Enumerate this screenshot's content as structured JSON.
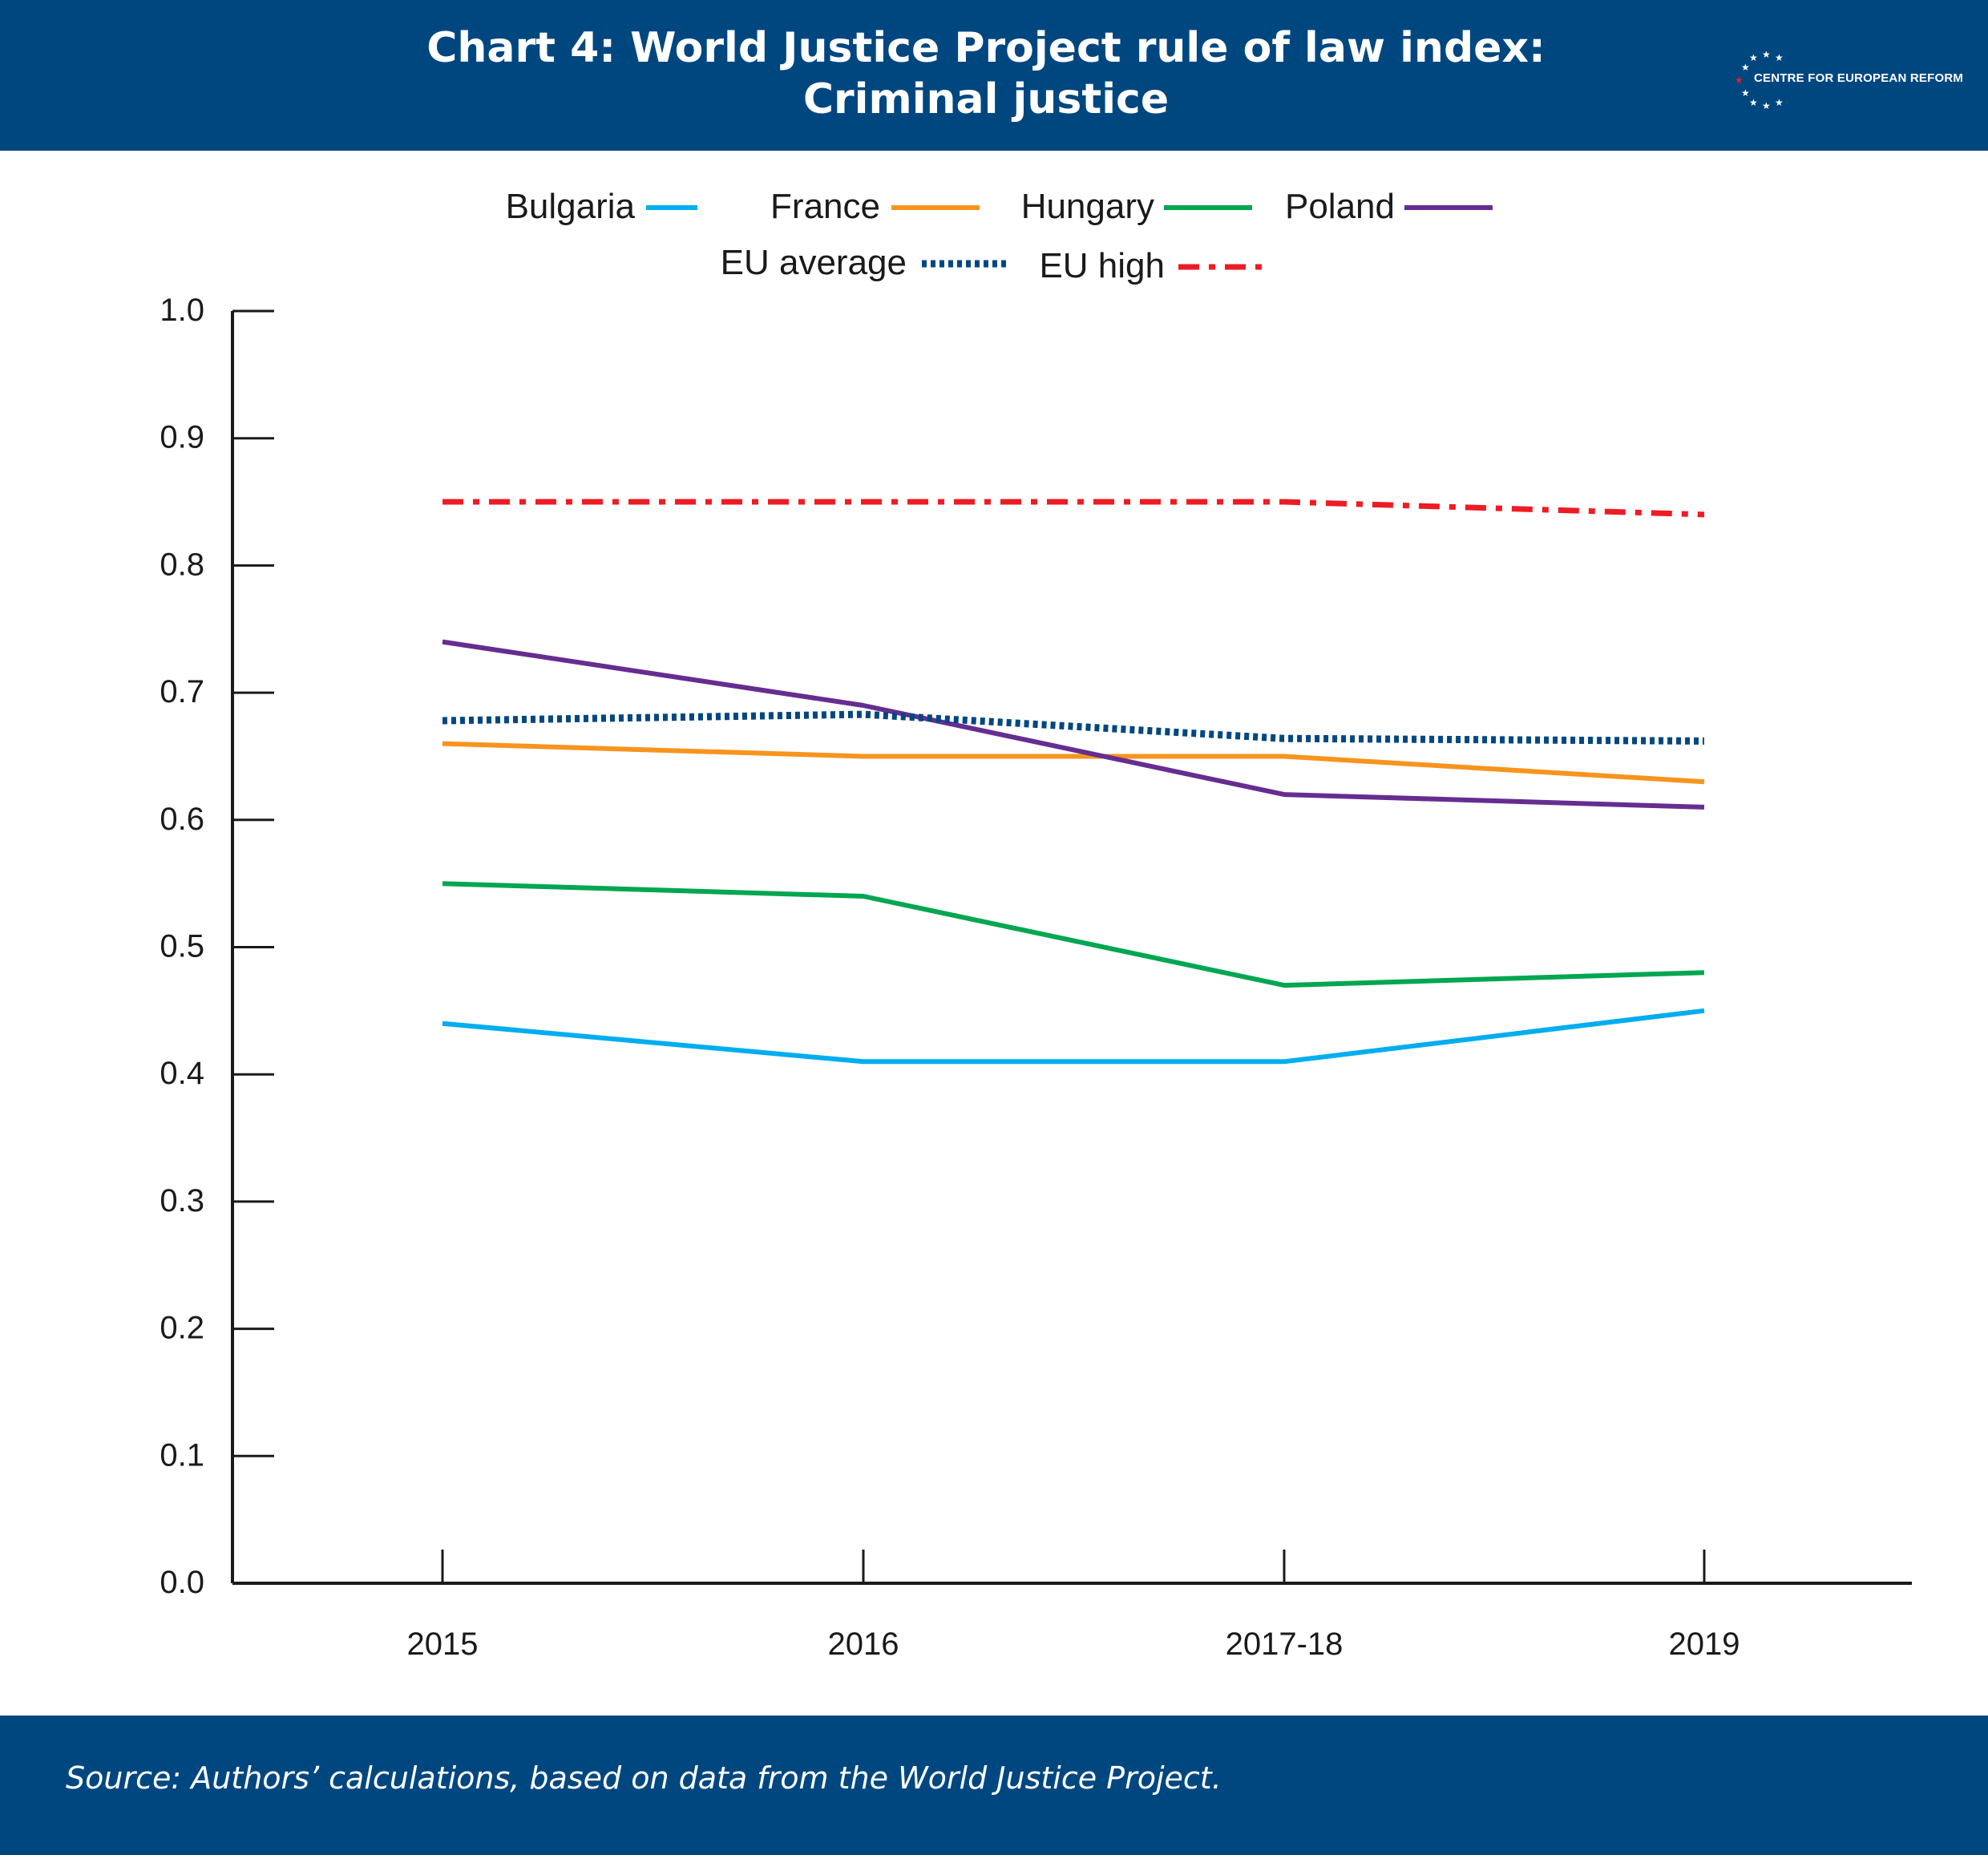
{
  "header": {
    "title_line1": "Chart 4: World Justice Project rule of law index:",
    "title_line2": "Criminal justice",
    "logo_text": "CENTRE FOR EUROPEAN REFORM",
    "background_color": "#004780"
  },
  "footer": {
    "source": "Source: Authors’ calculations, based on data from the World Justice Project."
  },
  "chart_data": {
    "type": "line",
    "x": [
      "2015",
      "2016",
      "2017-18",
      "2019"
    ],
    "ylim": [
      0,
      1.0
    ],
    "yticks": [
      "0.0",
      "0.1",
      "0.2",
      "0.3",
      "0.4",
      "0.5",
      "0.6",
      "0.7",
      "0.8",
      "0.9",
      "1.0"
    ],
    "grid": false,
    "legend_placement": "top-center",
    "series": [
      {
        "name": "Bulgaria",
        "values": [
          0.44,
          0.41,
          0.41,
          0.45
        ],
        "color": "#00adef",
        "style": "solid"
      },
      {
        "name": "France",
        "values": [
          0.66,
          0.65,
          0.65,
          0.63
        ],
        "color": "#f7941d",
        "style": "solid"
      },
      {
        "name": "Hungary",
        "values": [
          0.55,
          0.54,
          0.47,
          0.48
        ],
        "color": "#00a651",
        "style": "solid"
      },
      {
        "name": "Poland",
        "values": [
          0.74,
          0.69,
          0.62,
          0.61
        ],
        "color": "#662d91",
        "style": "solid"
      },
      {
        "name": "EU average",
        "values": [
          0.678,
          0.683,
          0.664,
          0.662
        ],
        "color": "#004780",
        "style": "dotted"
      },
      {
        "name": "EU high",
        "values": [
          0.85,
          0.85,
          0.85,
          0.84
        ],
        "color": "#ed1c24",
        "style": "dashdot"
      }
    ]
  }
}
